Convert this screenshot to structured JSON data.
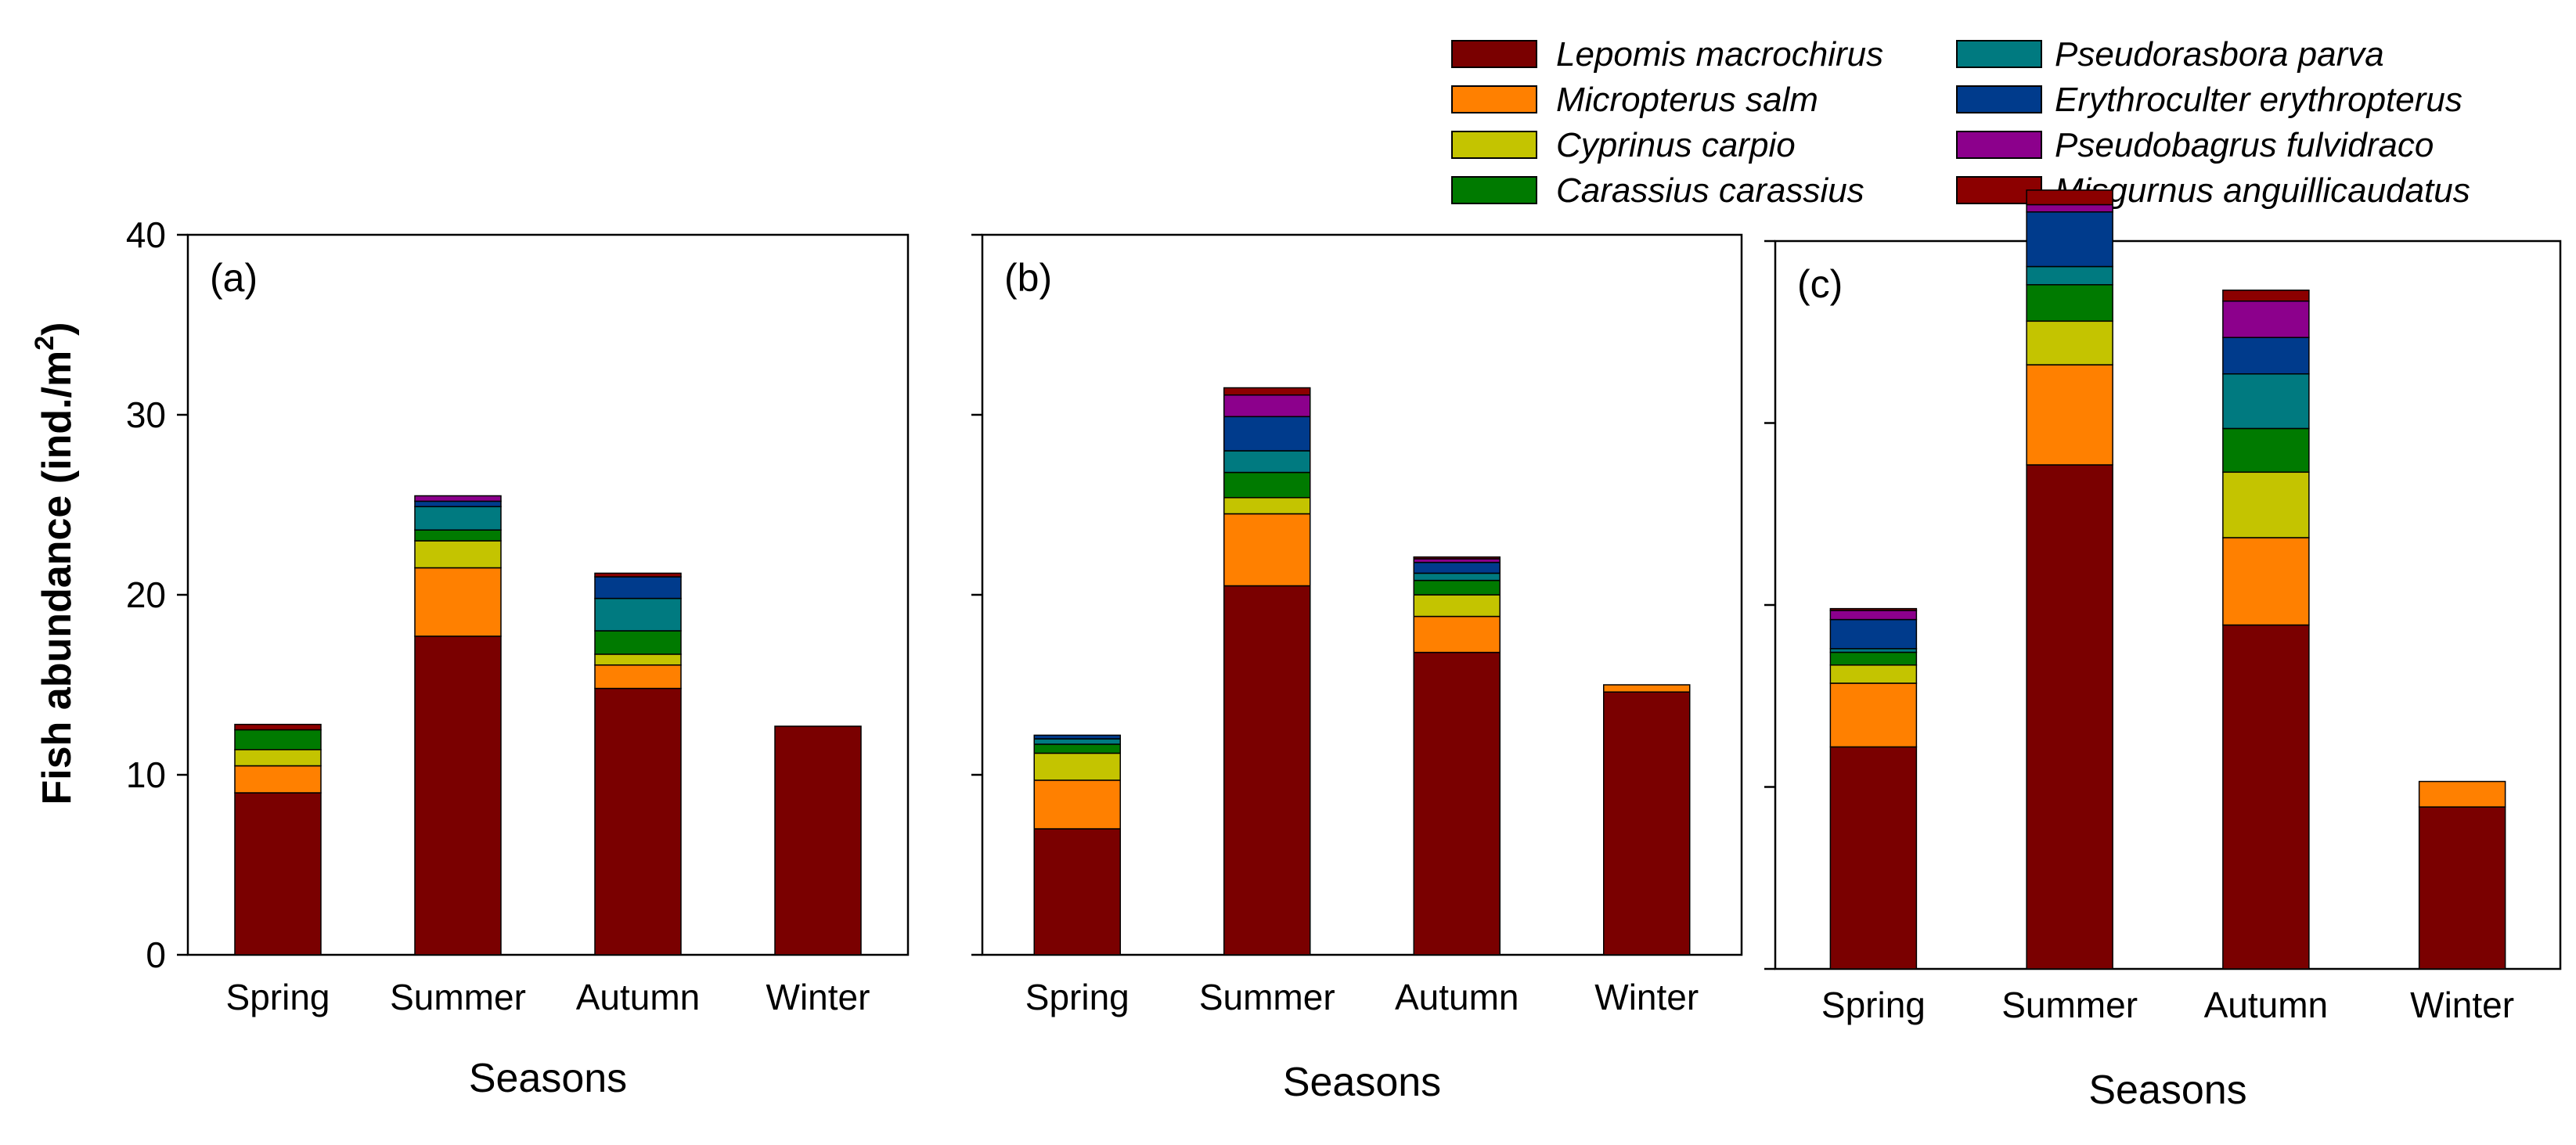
{
  "chart_data": {
    "type": "bar",
    "stacked": true,
    "ylabel": "Fish abundance (ind./m",
    "ylabel_sup": "2",
    "ylabel_close": ")",
    "xlabel": "Seasons",
    "ylim": [
      0,
      40
    ],
    "yticks": [
      "0",
      "10",
      "20",
      "30",
      "40"
    ],
    "categories": [
      "Spring",
      "Summer",
      "Autumn",
      "Winter"
    ],
    "legend": [
      {
        "name": "Lepomis macrochirus",
        "color": "#7a0000"
      },
      {
        "name": "Micropterus salm",
        "color": "#ff8000"
      },
      {
        "name": "Cyprinus carpio",
        "color": "#c4c400"
      },
      {
        "name": "Carassius carassius",
        "color": "#007a00"
      },
      {
        "name": "Pseudorasbora parva",
        "color": "#007a80"
      },
      {
        "name": "Erythroculter erythropterus",
        "color": "#003b8c"
      },
      {
        "name": "Pseudobagrus fulvidraco",
        "color": "#8c008c"
      },
      {
        "name": "Misgurnus anguillicaudatus",
        "color": "#8c0000"
      }
    ],
    "panels": [
      {
        "label": "(a)",
        "series": [
          {
            "name": "Lepomis macrochirus",
            "values": [
              9.0,
              17.7,
              14.8,
              12.7
            ]
          },
          {
            "name": "Micropterus salm",
            "values": [
              1.5,
              3.8,
              1.3,
              0
            ]
          },
          {
            "name": "Cyprinus carpio",
            "values": [
              0.9,
              1.5,
              0.6,
              0
            ]
          },
          {
            "name": "Carassius carassius",
            "values": [
              1.1,
              0.6,
              1.3,
              0
            ]
          },
          {
            "name": "Pseudorasbora parva",
            "values": [
              0,
              1.3,
              1.8,
              0
            ]
          },
          {
            "name": "Erythroculter erythropterus",
            "values": [
              0,
              0.3,
              1.2,
              0
            ]
          },
          {
            "name": "Pseudobagrus fulvidraco",
            "values": [
              0,
              0.3,
              0,
              0
            ]
          },
          {
            "name": "Misgurnus anguillicaudatus",
            "values": [
              0.3,
              0,
              0.2,
              0
            ]
          }
        ]
      },
      {
        "label": "(b)",
        "series": [
          {
            "name": "Lepomis macrochirus",
            "values": [
              7.0,
              20.5,
              16.8,
              14.6
            ]
          },
          {
            "name": "Micropterus salm",
            "values": [
              2.7,
              4.0,
              2.0,
              0.4
            ]
          },
          {
            "name": "Cyprinus carpio",
            "values": [
              1.5,
              0.9,
              1.2,
              0
            ]
          },
          {
            "name": "Carassius carassius",
            "values": [
              0.5,
              1.4,
              0.8,
              0
            ]
          },
          {
            "name": "Pseudorasbora parva",
            "values": [
              0.3,
              1.2,
              0.4,
              0
            ]
          },
          {
            "name": "Erythroculter erythropterus",
            "values": [
              0.2,
              1.9,
              0.6,
              0
            ]
          },
          {
            "name": "Pseudobagrus fulvidraco",
            "values": [
              0,
              1.2,
              0.2,
              0
            ]
          },
          {
            "name": "Misgurnus anguillicaudatus",
            "values": [
              0,
              0.4,
              0.1,
              0
            ]
          }
        ]
      },
      {
        "label": "(c)",
        "series": [
          {
            "name": "Lepomis macrochirus",
            "values": [
              12.2,
              27.7,
              18.9,
              8.9
            ]
          },
          {
            "name": "Micropterus salm",
            "values": [
              3.5,
              5.5,
              4.8,
              1.4
            ]
          },
          {
            "name": "Cyprinus carpio",
            "values": [
              1.0,
              2.4,
              3.6,
              0
            ]
          },
          {
            "name": "Carassius carassius",
            "values": [
              0.7,
              2.0,
              2.4,
              0
            ]
          },
          {
            "name": "Pseudorasbora parva",
            "values": [
              0.2,
              1.0,
              3.0,
              0
            ]
          },
          {
            "name": "Erythroculter erythropterus",
            "values": [
              1.6,
              3.0,
              2.0,
              0
            ]
          },
          {
            "name": "Pseudobagrus fulvidraco",
            "values": [
              0.5,
              0.4,
              2.0,
              0
            ]
          },
          {
            "name": "Misgurnus anguillicaudatus",
            "values": [
              0.1,
              0.8,
              0.6,
              0
            ]
          }
        ]
      }
    ]
  }
}
